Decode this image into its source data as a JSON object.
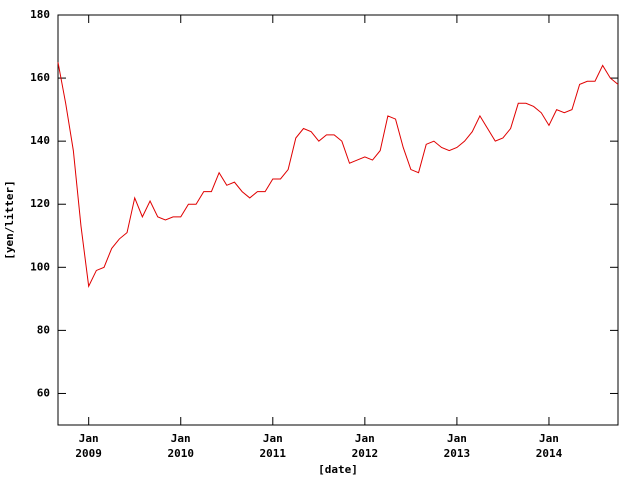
{
  "chart_data": {
    "type": "line",
    "x_label": "[date]",
    "y_label": "[yen/litter]",
    "xlim": [
      "2008-09",
      "2014-10"
    ],
    "xticks": [
      {
        "value": "2009-01",
        "label": "Jan\n2009"
      },
      {
        "value": "2010-01",
        "label": "Jan\n2010"
      },
      {
        "value": "2011-01",
        "label": "Jan\n2011"
      },
      {
        "value": "2012-01",
        "label": "Jan\n2012"
      },
      {
        "value": "2013-01",
        "label": "Jan\n2013"
      },
      {
        "value": "2014-01",
        "label": "Jan\n2014"
      }
    ],
    "ylim": [
      50,
      180
    ],
    "yticks": [
      60,
      80,
      100,
      120,
      140,
      160,
      180
    ],
    "x": [
      "2008-09",
      "2008-10",
      "2008-11",
      "2008-12",
      "2009-01",
      "2009-02",
      "2009-03",
      "2009-04",
      "2009-05",
      "2009-06",
      "2009-07",
      "2009-08",
      "2009-09",
      "2009-10",
      "2009-11",
      "2009-12",
      "2010-01",
      "2010-02",
      "2010-03",
      "2010-04",
      "2010-05",
      "2010-06",
      "2010-07",
      "2010-08",
      "2010-09",
      "2010-10",
      "2010-11",
      "2010-12",
      "2011-01",
      "2011-02",
      "2011-03",
      "2011-04",
      "2011-05",
      "2011-06",
      "2011-07",
      "2011-08",
      "2011-09",
      "2011-10",
      "2011-11",
      "2011-12",
      "2012-01",
      "2012-02",
      "2012-03",
      "2012-04",
      "2012-05",
      "2012-06",
      "2012-07",
      "2012-08",
      "2012-09",
      "2012-10",
      "2012-11",
      "2012-12",
      "2013-01",
      "2013-02",
      "2013-03",
      "2013-04",
      "2013-05",
      "2013-06",
      "2013-07",
      "2013-08",
      "2013-09",
      "2013-10",
      "2013-11",
      "2013-12",
      "2014-01",
      "2014-02",
      "2014-03",
      "2014-04",
      "2014-05",
      "2014-06",
      "2014-07",
      "2014-08",
      "2014-09",
      "2014-10"
    ],
    "series": [
      {
        "color": "#e00000",
        "values": [
          165,
          152,
          137,
          113,
          94,
          99,
          100,
          106,
          109,
          111,
          122,
          116,
          121,
          116,
          115,
          116,
          116,
          120,
          120,
          124,
          124,
          130,
          126,
          127,
          124,
          122,
          124,
          124,
          128,
          128,
          131,
          141,
          144,
          143,
          140,
          142,
          142,
          140,
          133,
          134,
          135,
          134,
          137,
          148,
          147,
          138,
          131,
          130,
          139,
          140,
          138,
          137,
          138,
          140,
          143,
          148,
          144,
          140,
          141,
          144,
          152,
          152,
          151,
          149,
          145,
          150,
          149,
          150,
          158,
          159,
          159,
          164,
          160,
          158
        ]
      }
    ]
  }
}
